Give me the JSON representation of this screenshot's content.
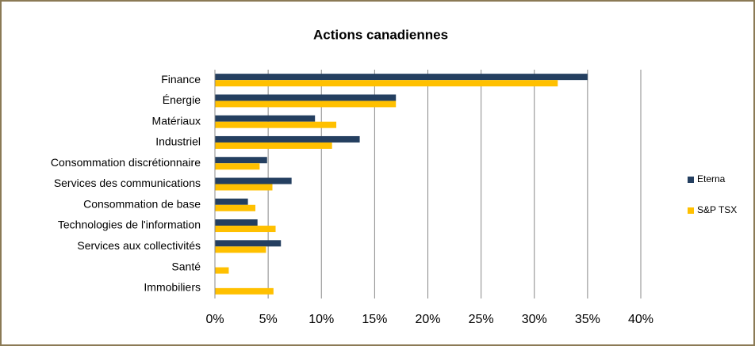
{
  "chart_data": {
    "type": "hbar",
    "title": "Actions canadiennes",
    "categories": [
      "Finance",
      "Énergie",
      "Matériaux",
      "Industriel",
      "Consommation discrétionnaire",
      "Services des communications",
      "Consommation de base",
      "Technologies de l'information",
      "Services aux collectivités",
      "Santé",
      "Immobiliers"
    ],
    "series": [
      {
        "name": "Eterna",
        "color": "#243f60",
        "values": [
          35,
          17,
          9.4,
          13.6,
          4.9,
          7.2,
          3.1,
          4,
          6.2,
          0,
          0
        ]
      },
      {
        "name": "S&P TSX",
        "color": "#ffc000",
        "values": [
          32.2,
          17,
          11.4,
          11,
          4.2,
          5.4,
          3.8,
          5.7,
          4.8,
          1.3,
          5.5
        ]
      }
    ],
    "xlim": [
      0,
      40
    ],
    "xticks": [
      {
        "value": 0,
        "label": "0%"
      },
      {
        "value": 5,
        "label": "5%"
      },
      {
        "value": 10,
        "label": "10%"
      },
      {
        "value": 15,
        "label": "15%"
      },
      {
        "value": 20,
        "label": "20%"
      },
      {
        "value": 25,
        "label": "25%"
      },
      {
        "value": 30,
        "label": "30%"
      },
      {
        "value": 35,
        "label": "35%"
      },
      {
        "value": 40,
        "label": "40%"
      }
    ],
    "grid": true,
    "legend": "right"
  }
}
